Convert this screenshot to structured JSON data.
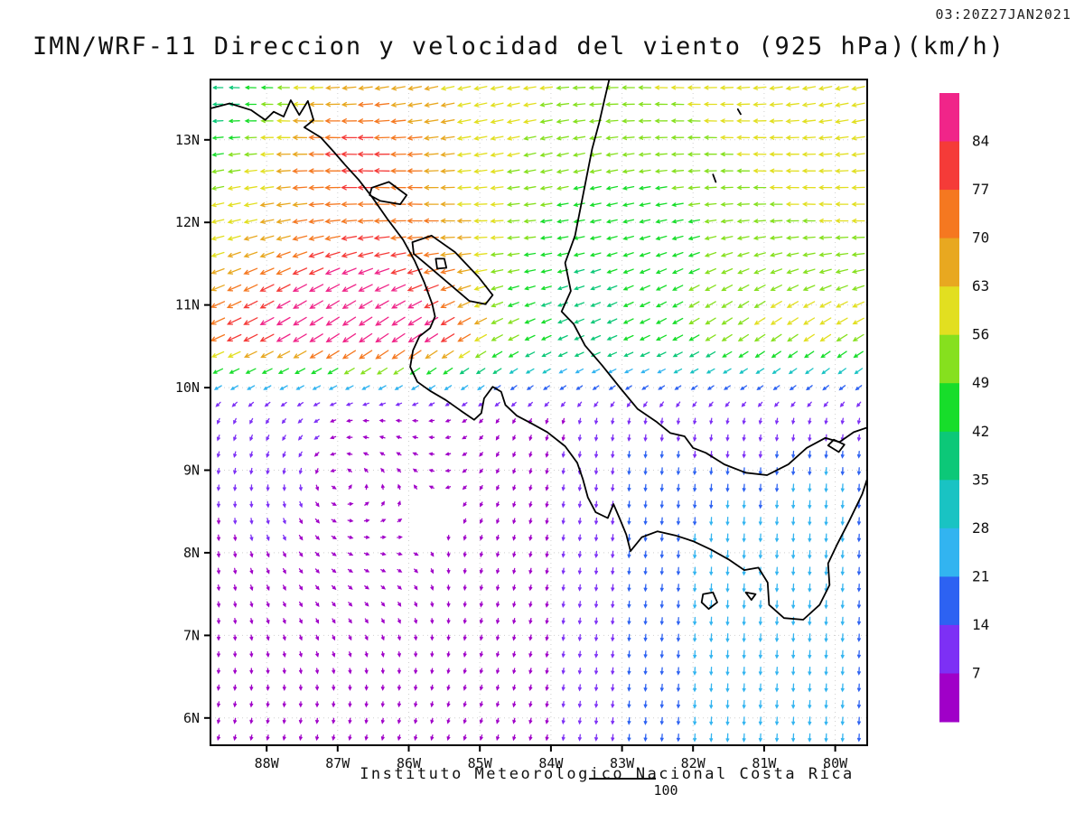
{
  "header": {
    "title": "IMN/WRF-11 Direccion y velocidad del viento (925 hPa)(km/h)",
    "timestamp": "03:20Z27JAN2021"
  },
  "footer": {
    "credit": "Instituto Meteorologico Nacional Costa Rica",
    "note": "100"
  },
  "chart_data": {
    "type": "vector_field",
    "title": "IMN/WRF-11 Direccion y velocidad del viento (925 hPa)(km/h)",
    "valid_time": "03:20Z27JAN2021",
    "unit": "km/h",
    "level": "925 hPa",
    "lon_range": [
      -88.79,
      -79.55
    ],
    "lat_range": [
      5.67,
      13.73
    ],
    "lon_ticks": [
      [
        -88,
        "88W"
      ],
      [
        -87,
        "87W"
      ],
      [
        -86,
        "86W"
      ],
      [
        -85,
        "85W"
      ],
      [
        -84,
        "84W"
      ],
      [
        -83,
        "83W"
      ],
      [
        -82,
        "82W"
      ],
      [
        -81,
        "81W"
      ],
      [
        -80,
        "80W"
      ]
    ],
    "lat_ticks": [
      [
        13,
        "13N"
      ],
      [
        12,
        "12N"
      ],
      [
        11,
        "11N"
      ],
      [
        10,
        "10N"
      ],
      [
        9,
        "9N"
      ],
      [
        8,
        "8N"
      ],
      [
        7,
        "7N"
      ],
      [
        6,
        "6N"
      ]
    ],
    "grid": "dotted, 1 degree",
    "colorbar": {
      "unit": "km/h",
      "levels": [
        7,
        14,
        21,
        28,
        35,
        42,
        49,
        56,
        63,
        70,
        77,
        84
      ],
      "colors_low_to_high": [
        "#a000c8",
        "#7d30f5",
        "#2d62f2",
        "#32b4f0",
        "#19c3c3",
        "#0cc878",
        "#17dd2a",
        "#86e01e",
        "#e2df20",
        "#e8a820",
        "#f57820",
        "#f53b38",
        "#f02589"
      ]
    },
    "wind": {
      "description": "Strong easterly trade winds north of ~10.2N (Papagayo jet up to ~84 km/h near 11.5N 86.3W, yellow band ~56-63 along 13.5N), weak variable purple winds (5-15 km/h) south of 10N with cyclonic turning near 9N 87W, and cyan southerly gap flows (~20-30 km/h) over Panama near 80-82W.",
      "transition": {
        "lat": 10.15,
        "width": 0.6
      },
      "trade": {
        "base_speed": 45,
        "tilt_north": -0.1,
        "tilt_south_zone": -0.55,
        "tilt_blend_lat": [
          10.6,
          12.2
        ],
        "dir_wobble": 0.12
      },
      "bumps": [
        {
          "lat": 13.6,
          "lon": -84.0,
          "slat": 1.6,
          "slon": 9.0,
          "amp": 13
        },
        {
          "lat": 11.45,
          "lon": -86.35,
          "slat": 0.75,
          "slon": 1.25,
          "amp": 27
        },
        {
          "lat": 12.95,
          "lon": -86.85,
          "slat": 0.55,
          "slon": 1.0,
          "amp": 20
        },
        {
          "lat": 10.55,
          "lon": -88.3,
          "slat": 0.55,
          "slon": 1.5,
          "amp": 22
        },
        {
          "lat": 10.45,
          "lon": -85.9,
          "slat": 0.45,
          "slon": 0.9,
          "amp": 15
        },
        {
          "lat": 11.9,
          "lon": -83.0,
          "slat": 1.2,
          "slon": 1.5,
          "amp": -12
        },
        {
          "lat": 13.45,
          "lon": -88.6,
          "slat": 0.6,
          "slon": 0.8,
          "amp": -20
        },
        {
          "lat": 12.3,
          "lon": -80.2,
          "slat": 1.4,
          "slon": 2.2,
          "amp": 6
        },
        {
          "lat": 10.9,
          "lon": -84.3,
          "slat": 0.5,
          "slon": 0.9,
          "amp": -9
        }
      ],
      "gyre": {
        "lat": 8.95,
        "lon": -87.2,
        "strength": 8,
        "radius": 2.0
      },
      "south_drift": {
        "u": -1.2,
        "v": -3.4
      },
      "panama_jets": [
        {
          "lon": -80.15,
          "slon": 0.8,
          "amp": 20,
          "max_lat": 10.0
        },
        {
          "lon": -81.55,
          "slon": 0.45,
          "amp": 11,
          "max_lat": 9.4
        },
        {
          "lon": -82.6,
          "slon": 0.9,
          "amp": 12,
          "max_lat": 10.3
        }
      ]
    },
    "coastlines": {
      "pacific": [
        [
          -88.79,
          13.38
        ],
        [
          -88.52,
          13.44
        ],
        [
          -88.22,
          13.36
        ],
        [
          -88.02,
          13.24
        ],
        [
          -87.9,
          13.34
        ],
        [
          -87.76,
          13.28
        ],
        [
          -87.66,
          13.48
        ],
        [
          -87.54,
          13.3
        ],
        [
          -87.42,
          13.47
        ],
        [
          -87.34,
          13.24
        ],
        [
          -87.47,
          13.15
        ],
        [
          -87.24,
          13.03
        ],
        [
          -87.06,
          12.86
        ],
        [
          -86.9,
          12.7
        ],
        [
          -86.71,
          12.52
        ],
        [
          -86.51,
          12.3
        ],
        [
          -86.3,
          12.04
        ],
        [
          -86.08,
          11.79
        ],
        [
          -85.92,
          11.54
        ],
        [
          -85.78,
          11.27
        ],
        [
          -85.67,
          11.01
        ],
        [
          -85.63,
          10.86
        ],
        [
          -85.7,
          10.72
        ],
        [
          -85.85,
          10.62
        ],
        [
          -85.94,
          10.45
        ],
        [
          -85.98,
          10.25
        ],
        [
          -85.88,
          10.07
        ],
        [
          -85.7,
          9.96
        ],
        [
          -85.48,
          9.85
        ],
        [
          -85.25,
          9.71
        ],
        [
          -85.08,
          9.61
        ],
        [
          -84.98,
          9.69
        ],
        [
          -84.94,
          9.87
        ],
        [
          -84.82,
          10.01
        ],
        [
          -84.7,
          9.95
        ],
        [
          -84.64,
          9.79
        ],
        [
          -84.48,
          9.66
        ],
        [
          -84.28,
          9.57
        ],
        [
          -84.05,
          9.46
        ],
        [
          -83.8,
          9.29
        ],
        [
          -83.63,
          9.09
        ],
        [
          -83.55,
          8.89
        ],
        [
          -83.48,
          8.67
        ],
        [
          -83.37,
          8.49
        ],
        [
          -83.2,
          8.42
        ],
        [
          -83.12,
          8.59
        ],
        [
          -83.03,
          8.41
        ],
        [
          -82.94,
          8.22
        ],
        [
          -82.88,
          8.02
        ],
        [
          -82.72,
          8.19
        ],
        [
          -82.5,
          8.26
        ],
        [
          -82.25,
          8.21
        ],
        [
          -82.0,
          8.14
        ],
        [
          -81.75,
          8.04
        ],
        [
          -81.5,
          7.92
        ],
        [
          -81.28,
          7.79
        ],
        [
          -81.08,
          7.82
        ],
        [
          -80.95,
          7.64
        ],
        [
          -80.93,
          7.37
        ],
        [
          -80.72,
          7.21
        ],
        [
          -80.45,
          7.19
        ],
        [
          -80.22,
          7.37
        ],
        [
          -80.08,
          7.61
        ],
        [
          -80.1,
          7.87
        ],
        [
          -79.98,
          8.09
        ],
        [
          -79.8,
          8.39
        ],
        [
          -79.62,
          8.71
        ],
        [
          -79.54,
          8.92
        ]
      ],
      "caribbean": [
        [
          -79.54,
          9.52
        ],
        [
          -79.74,
          9.46
        ],
        [
          -79.94,
          9.34
        ],
        [
          -80.14,
          9.39
        ],
        [
          -80.4,
          9.27
        ],
        [
          -80.66,
          9.07
        ],
        [
          -80.96,
          8.94
        ],
        [
          -81.26,
          8.97
        ],
        [
          -81.56,
          9.07
        ],
        [
          -81.82,
          9.21
        ],
        [
          -82.0,
          9.27
        ],
        [
          -82.12,
          9.41
        ],
        [
          -82.32,
          9.45
        ],
        [
          -82.52,
          9.59
        ],
        [
          -82.78,
          9.74
        ],
        [
          -83.02,
          9.99
        ],
        [
          -83.28,
          10.27
        ],
        [
          -83.52,
          10.51
        ],
        [
          -83.68,
          10.77
        ],
        [
          -83.85,
          10.92
        ],
        [
          -83.72,
          11.17
        ],
        [
          -83.8,
          11.51
        ],
        [
          -83.66,
          11.84
        ],
        [
          -83.58,
          12.19
        ],
        [
          -83.5,
          12.54
        ],
        [
          -83.42,
          12.89
        ],
        [
          -83.32,
          13.21
        ],
        [
          -83.24,
          13.51
        ],
        [
          -83.18,
          13.73
        ]
      ],
      "lake_nicaragua": [
        [
          -85.95,
          11.76
        ],
        [
          -85.68,
          11.84
        ],
        [
          -85.35,
          11.64
        ],
        [
          -85.02,
          11.34
        ],
        [
          -84.82,
          11.12
        ],
        [
          -84.92,
          11.01
        ],
        [
          -85.15,
          11.05
        ],
        [
          -85.45,
          11.27
        ],
        [
          -85.75,
          11.49
        ],
        [
          -85.93,
          11.62
        ]
      ],
      "lake_managua": [
        [
          -86.52,
          12.42
        ],
        [
          -86.28,
          12.49
        ],
        [
          -86.03,
          12.33
        ],
        [
          -86.12,
          12.22
        ],
        [
          -86.4,
          12.26
        ],
        [
          -86.55,
          12.33
        ]
      ],
      "islands": [
        [
          [
            -81.86,
            7.5
          ],
          [
            -81.72,
            7.52
          ],
          [
            -81.66,
            7.4
          ],
          [
            -81.78,
            7.32
          ],
          [
            -81.88,
            7.4
          ]
        ],
        [
          [
            -81.26,
            7.52
          ],
          [
            -81.12,
            7.5
          ],
          [
            -81.18,
            7.43
          ]
        ],
        [
          [
            -85.62,
            11.56
          ],
          [
            -85.5,
            11.56
          ],
          [
            -85.47,
            11.45
          ],
          [
            -85.6,
            11.44
          ]
        ],
        [
          [
            -80.1,
            9.3
          ],
          [
            -79.95,
            9.22
          ],
          [
            -79.87,
            9.31
          ],
          [
            -80.02,
            9.37
          ]
        ],
        [
          [
            -81.72,
            12.58
          ],
          [
            -81.68,
            12.49
          ]
        ],
        [
          [
            -81.37,
            13.37
          ],
          [
            -81.33,
            13.31
          ]
        ]
      ]
    }
  }
}
